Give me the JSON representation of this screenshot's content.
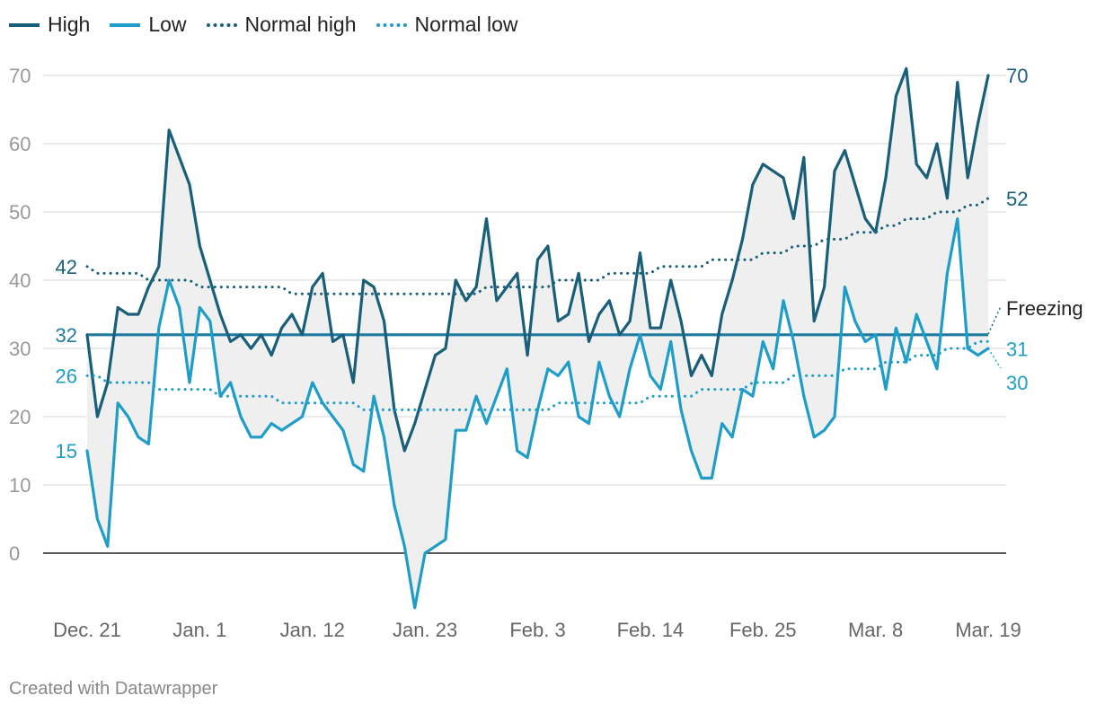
{
  "chart_data": {
    "type": "line",
    "title": "",
    "xlabel": "",
    "ylabel": "",
    "ylim": [
      -8,
      72
    ],
    "yticks": [
      0,
      10,
      20,
      30,
      40,
      50,
      60,
      70
    ],
    "grid": true,
    "legend_position": "top-left",
    "x_tick_labels": [
      {
        "label": "Dec. 21",
        "day": 0
      },
      {
        "label": "Jan. 1",
        "day": 11
      },
      {
        "label": "Jan. 12",
        "day": 22
      },
      {
        "label": "Jan. 23",
        "day": 33
      },
      {
        "label": "Feb. 3",
        "day": 44
      },
      {
        "label": "Feb. 14",
        "day": 55
      },
      {
        "label": "Feb. 25",
        "day": 66
      },
      {
        "label": "Mar. 8",
        "day": 77
      },
      {
        "label": "Mar. 19",
        "day": 88
      }
    ],
    "series": [
      {
        "name": "High",
        "style": "solid",
        "color": "#1a5f7a",
        "values": [
          32,
          20,
          25,
          36,
          35,
          35,
          39,
          42,
          62,
          58,
          54,
          45,
          40,
          35,
          31,
          32,
          30,
          32,
          29,
          33,
          35,
          32,
          39,
          41,
          31,
          32,
          25,
          40,
          39,
          34,
          21,
          15,
          19,
          24,
          29,
          30,
          40,
          37,
          39,
          49,
          37,
          39,
          41,
          29,
          43,
          45,
          34,
          35,
          41,
          31,
          35,
          37,
          32,
          34,
          44,
          33,
          33,
          40,
          34,
          26,
          29,
          26,
          35,
          40,
          46,
          54,
          57,
          56,
          55,
          49,
          58,
          34,
          39,
          56,
          59,
          54,
          49,
          47,
          55,
          67,
          71,
          57,
          55,
          60,
          52,
          69,
          55,
          63,
          70
        ]
      },
      {
        "name": "Low",
        "style": "solid",
        "color": "#1f9dc9",
        "values": [
          15,
          5,
          1,
          22,
          20,
          17,
          16,
          33,
          40,
          36,
          25,
          36,
          34,
          23,
          25,
          20,
          17,
          17,
          19,
          18,
          19,
          20,
          25,
          22,
          20,
          18,
          13,
          12,
          23,
          17,
          7,
          1,
          -8,
          0,
          1,
          2,
          18,
          18,
          23,
          19,
          23,
          27,
          15,
          14,
          21,
          27,
          26,
          28,
          20,
          19,
          28,
          23,
          20,
          27,
          32,
          26,
          24,
          31,
          21,
          15,
          11,
          11,
          19,
          17,
          24,
          23,
          31,
          27,
          37,
          31,
          23,
          17,
          18,
          20,
          39,
          34,
          31,
          32,
          24,
          33,
          28,
          35,
          31,
          27,
          41,
          49,
          30,
          29,
          30
        ]
      },
      {
        "name": "Normal high",
        "style": "dotted",
        "color": "#1a5f7a",
        "values": [
          42,
          41,
          41,
          41,
          41,
          41,
          40,
          40,
          40,
          40,
          40,
          39,
          39,
          39,
          39,
          39,
          39,
          39,
          39,
          39,
          38,
          38,
          38,
          38,
          38,
          38,
          38,
          38,
          38,
          38,
          38,
          38,
          38,
          38,
          38,
          38,
          38,
          38,
          38,
          39,
          39,
          39,
          39,
          39,
          39,
          39,
          40,
          40,
          40,
          40,
          40,
          41,
          41,
          41,
          41,
          41,
          42,
          42,
          42,
          42,
          42,
          43,
          43,
          43,
          43,
          43,
          44,
          44,
          44,
          45,
          45,
          45,
          46,
          46,
          46,
          47,
          47,
          47,
          48,
          48,
          49,
          49,
          49,
          50,
          50,
          50,
          51,
          51,
          52
        ]
      },
      {
        "name": "Normal low",
        "style": "dotted",
        "color": "#1f9dc9",
        "values": [
          26,
          26,
          25,
          25,
          25,
          25,
          25,
          24,
          24,
          24,
          24,
          24,
          24,
          23,
          23,
          23,
          23,
          23,
          23,
          22,
          22,
          22,
          22,
          22,
          22,
          22,
          22,
          21,
          21,
          21,
          21,
          21,
          21,
          21,
          21,
          21,
          21,
          21,
          21,
          21,
          21,
          21,
          21,
          21,
          21,
          21,
          22,
          22,
          22,
          22,
          22,
          22,
          22,
          22,
          22,
          23,
          23,
          23,
          23,
          23,
          24,
          24,
          24,
          24,
          24,
          25,
          25,
          25,
          25,
          26,
          26,
          26,
          26,
          26,
          27,
          27,
          27,
          27,
          28,
          28,
          28,
          29,
          29,
          29,
          30,
          30,
          30,
          31,
          31
        ]
      }
    ],
    "reference_line": {
      "name": "Freezing",
      "value": 32,
      "color": "#1f7aa0"
    },
    "start_labels": [
      {
        "series": "Normal high",
        "text": "42"
      },
      {
        "series": "Freezing",
        "text": "32"
      },
      {
        "series": "Normal low",
        "text": "26"
      },
      {
        "series": "Low",
        "text": "15"
      }
    ],
    "end_labels": [
      {
        "series": "High",
        "text": "70"
      },
      {
        "series": "Normal high",
        "text": "52"
      },
      {
        "series": "Freezing",
        "text": "Freezing"
      },
      {
        "series": "Normal low",
        "text": "31"
      },
      {
        "series": "Low",
        "text": "30"
      }
    ]
  },
  "legend": [
    {
      "label": "High",
      "style": "solid",
      "color": "#1a5f7a"
    },
    {
      "label": "Low",
      "style": "solid",
      "color": "#1f9dc9"
    },
    {
      "label": "Normal high",
      "style": "dotted",
      "color": "#1a5f7a"
    },
    {
      "label": "Normal low",
      "style": "dotted",
      "color": "#1f9dc9"
    }
  ],
  "credit": "Created with Datawrapper"
}
